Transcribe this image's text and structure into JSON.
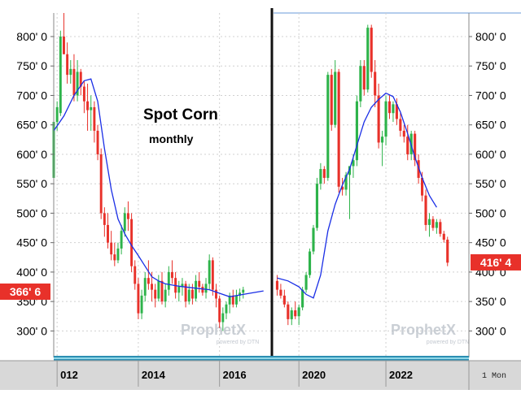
{
  "chart_data": [
    {
      "type": "candlestick",
      "title": "Spot Corn",
      "subtitle": "monthly",
      "ylim": [
        255,
        840
      ],
      "x_range": [
        "2011-12",
        "2017-04"
      ],
      "y_ticks_left": [
        "800' 0",
        "750' 0",
        "700' 0",
        "650' 0",
        "600' 0",
        "550' 0",
        "500' 0",
        "450' 0",
        "400' 0",
        "350' 0",
        "300' 0"
      ],
      "y_tick_values": [
        800,
        750,
        700,
        650,
        600,
        550,
        500,
        450,
        400,
        350,
        300
      ],
      "x_ticks": [
        {
          "label": "012",
          "value": "2012-01"
        },
        {
          "label": "2014",
          "value": "2014-01"
        },
        {
          "label": "2016",
          "value": "2016-01"
        }
      ],
      "last_price_label": "366' 6",
      "last_price_value": 366.75,
      "colors": {
        "up": "#2db34a",
        "down": "#e8312a",
        "moving_average": "#1a2ee6",
        "badge": "#e8312a"
      },
      "series": [
        {
          "kind": "ohlc",
          "values": [
            [
              "2011-12",
              560,
              668,
              540,
              655
            ],
            [
              "2012-01",
              655,
              690,
              640,
              680
            ],
            [
              "2012-02",
              670,
              810,
              665,
              800
            ],
            [
              "2012-03",
              800,
              840,
              770,
              770
            ],
            [
              "2012-04",
              770,
              790,
              720,
              735
            ],
            [
              "2012-05",
              735,
              760,
              720,
              745
            ],
            [
              "2012-06",
              745,
              770,
              690,
              700
            ],
            [
              "2012-07",
              700,
              760,
              690,
              740
            ],
            [
              "2012-08",
              740,
              745,
              700,
              715
            ],
            [
              "2012-09",
              715,
              725,
              670,
              690
            ],
            [
              "2012-10",
              690,
              720,
              640,
              675
            ],
            [
              "2012-11",
              675,
              700,
              640,
              680
            ],
            [
              "2012-12",
              680,
              690,
              620,
              640
            ],
            [
              "2013-01",
              640,
              650,
              590,
              600
            ],
            [
              "2013-02",
              600,
              610,
              490,
              500
            ],
            [
              "2013-03",
              500,
              510,
              460,
              480
            ],
            [
              "2013-04",
              480,
              500,
              440,
              450
            ],
            [
              "2013-05",
              450,
              470,
              420,
              430
            ],
            [
              "2013-06",
              430,
              450,
              410,
              420
            ],
            [
              "2013-07",
              420,
              450,
              415,
              440
            ],
            [
              "2013-08",
              440,
              480,
              430,
              470
            ],
            [
              "2013-09",
              470,
              510,
              460,
              500
            ],
            [
              "2013-10",
              500,
              520,
              470,
              490
            ],
            [
              "2013-11",
              490,
              500,
              400,
              410
            ],
            [
              "2013-12",
              410,
              420,
              370,
              380
            ],
            [
              "2014-01",
              380,
              390,
              320,
              330
            ],
            [
              "2014-02",
              330,
              370,
              320,
              360
            ],
            [
              "2014-03",
              360,
              400,
              350,
              390
            ],
            [
              "2014-04",
              390,
              420,
              370,
              380
            ],
            [
              "2014-05",
              380,
              400,
              350,
              370
            ],
            [
              "2014-06",
              370,
              380,
              340,
              355
            ],
            [
              "2014-07",
              355,
              395,
              350,
              385
            ],
            [
              "2014-08",
              385,
              400,
              345,
              350
            ],
            [
              "2014-09",
              350,
              380,
              340,
              370
            ],
            [
              "2014-10",
              370,
              410,
              360,
              400
            ],
            [
              "2014-11",
              400,
              420,
              380,
              390
            ],
            [
              "2014-12",
              390,
              400,
              355,
              365
            ],
            [
              "2015-01",
              365,
              385,
              350,
              375
            ],
            [
              "2015-02",
              375,
              390,
              360,
              380
            ],
            [
              "2015-03",
              380,
              385,
              340,
              350
            ],
            [
              "2015-04",
              350,
              380,
              345,
              370
            ],
            [
              "2015-05",
              370,
              380,
              345,
              355
            ],
            [
              "2015-06",
              355,
              395,
              350,
              385
            ],
            [
              "2015-07",
              385,
              400,
              365,
              375
            ],
            [
              "2015-08",
              375,
              380,
              360,
              365
            ],
            [
              "2015-09",
              365,
              390,
              355,
              380
            ],
            [
              "2015-10",
              380,
              430,
              370,
              420
            ],
            [
              "2015-11",
              420,
              425,
              360,
              370
            ],
            [
              "2015-12",
              370,
              380,
              340,
              355
            ],
            [
              "2016-01",
              355,
              360,
              305,
              315
            ],
            [
              "2016-02",
              315,
              340,
              300,
              330
            ],
            [
              "2016-03",
              330,
              350,
              320,
              345
            ],
            [
              "2016-04",
              345,
              365,
              330,
              360
            ],
            [
              "2016-05",
              360,
              370,
              340,
              345
            ],
            [
              "2016-06",
              345,
              370,
              340,
              360
            ],
            [
              "2016-07",
              360,
              372,
              350,
              365
            ],
            [
              "2016-08",
              365,
              375,
              355,
              370
            ]
          ]
        },
        {
          "kind": "moving_average",
          "values": [
            [
              "2011-12",
              640
            ],
            [
              "2012-03",
              665
            ],
            [
              "2012-06",
              700
            ],
            [
              "2012-09",
              725
            ],
            [
              "2012-11",
              728
            ],
            [
              "2013-01",
              690
            ],
            [
              "2013-03",
              610
            ],
            [
              "2013-05",
              540
            ],
            [
              "2013-07",
              490
            ],
            [
              "2013-09",
              465
            ],
            [
              "2013-11",
              445
            ],
            [
              "2014-01",
              428
            ],
            [
              "2014-03",
              410
            ],
            [
              "2014-05",
              392
            ],
            [
              "2014-07",
              385
            ],
            [
              "2014-09",
              380
            ],
            [
              "2014-11",
              378
            ],
            [
              "2015-01",
              376
            ],
            [
              "2015-04",
              374
            ],
            [
              "2015-07",
              372
            ],
            [
              "2015-10",
              370
            ],
            [
              "2016-01",
              364
            ],
            [
              "2016-04",
              358
            ],
            [
              "2016-08",
              362
            ],
            [
              "2017-02",
              368
            ]
          ]
        }
      ],
      "watermark": "ProphetX",
      "watermark_sub": "powered by DTN"
    },
    {
      "type": "candlestick",
      "x_range": [
        "2019-06",
        "2023-11"
      ],
      "ylim": [
        255,
        840
      ],
      "y_ticks_right": [
        "800' 0",
        "750' 0",
        "700' 0",
        "650' 0",
        "600' 0",
        "550' 0",
        "500' 0",
        "450' 0",
        "400' 0",
        "350' 0",
        "300' 0"
      ],
      "y_tick_values": [
        800,
        750,
        700,
        650,
        600,
        550,
        500,
        450,
        400,
        350,
        300
      ],
      "x_ticks": [
        {
          "label": "2020",
          "value": "2020-01"
        },
        {
          "label": "2022",
          "value": "2022-01"
        }
      ],
      "last_price_label": "416' 4",
      "last_price_value": 416.5,
      "colors": {
        "up": "#2db34a",
        "down": "#e8312a",
        "moving_average": "#1a2ee6",
        "badge": "#e8312a"
      },
      "series": [
        {
          "kind": "ohlc",
          "values": [
            [
              "2019-07",
              385,
              395,
              360,
              370
            ],
            [
              "2019-08",
              370,
              380,
              355,
              360
            ],
            [
              "2019-09",
              360,
              370,
              340,
              345
            ],
            [
              "2019-10",
              345,
              350,
              310,
              320
            ],
            [
              "2019-11",
              320,
              340,
              310,
              335
            ],
            [
              "2019-12",
              335,
              350,
              320,
              325
            ],
            [
              "2020-01",
              325,
              345,
              310,
              340
            ],
            [
              "2020-02",
              340,
              375,
              335,
              370
            ],
            [
              "2020-03",
              370,
              400,
              365,
              395
            ],
            [
              "2020-04",
              395,
              440,
              390,
              435
            ],
            [
              "2020-05",
              435,
              480,
              430,
              475
            ],
            [
              "2020-06",
              475,
              560,
              470,
              550
            ],
            [
              "2020-07",
              550,
              585,
              540,
              575
            ],
            [
              "2020-08",
              575,
              580,
              550,
              560
            ],
            [
              "2020-09",
              560,
              740,
              555,
              735
            ],
            [
              "2020-10",
              735,
              745,
              640,
              650
            ],
            [
              "2020-11",
              650,
              760,
              645,
              740
            ],
            [
              "2020-12",
              740,
              745,
              535,
              545
            ],
            [
              "2021-01",
              545,
              560,
              530,
              540
            ],
            [
              "2021-02",
              540,
              570,
              530,
              565
            ],
            [
              "2021-03",
              565,
              580,
              490,
              580
            ],
            [
              "2021-04",
              580,
              600,
              560,
              590
            ],
            [
              "2021-05",
              590,
              700,
              580,
              690
            ],
            [
              "2021-06",
              690,
              760,
              680,
              750
            ],
            [
              "2021-07",
              750,
              760,
              700,
              710
            ],
            [
              "2021-08",
              710,
              820,
              705,
              815
            ],
            [
              "2021-09",
              815,
              820,
              730,
              740
            ],
            [
              "2021-10",
              740,
              760,
              680,
              700
            ],
            [
              "2021-11",
              700,
              720,
              610,
              620
            ],
            [
              "2021-12",
              620,
              640,
              580,
              630
            ],
            [
              "2021-13",
              630,
              670,
              615,
              660
            ],
            [
              "2022-01",
              660,
              700,
              650,
              690
            ],
            [
              "2022-02",
              690,
              700,
              660,
              670
            ],
            [
              "2022-03",
              670,
              690,
              655,
              685
            ],
            [
              "2022-04",
              685,
              695,
              650,
              660
            ],
            [
              "2022-05",
              660,
              670,
              630,
              640
            ],
            [
              "2022-06",
              640,
              650,
              620,
              630
            ],
            [
              "2022-07",
              630,
              650,
              590,
              600
            ],
            [
              "2022-08",
              600,
              640,
              590,
              635
            ],
            [
              "2022-09",
              635,
              640,
              580,
              590
            ],
            [
              "2022-10",
              590,
              600,
              550,
              560
            ],
            [
              "2022-11",
              560,
              570,
              520,
              530
            ],
            [
              "2022-12",
              530,
              540,
              470,
              480
            ],
            [
              "2023-01",
              480,
              500,
              460,
              490
            ],
            [
              "2023-02",
              490,
              495,
              470,
              475
            ],
            [
              "2023-03",
              475,
              490,
              465,
              485
            ],
            [
              "2023-04",
              485,
              490,
              460,
              465
            ],
            [
              "2023-05",
              465,
              470,
              450,
              455
            ],
            [
              "2023-06",
              455,
              460,
              410,
              416
            ]
          ]
        },
        {
          "kind": "moving_average",
          "values": [
            [
              "2019-07",
              390
            ],
            [
              "2019-10",
              385
            ],
            [
              "2020-01",
              375
            ],
            [
              "2020-03",
              362
            ],
            [
              "2020-05",
              356
            ],
            [
              "2020-07",
              395
            ],
            [
              "2020-09",
              470
            ],
            [
              "2020-11",
              515
            ],
            [
              "2021-01",
              548
            ],
            [
              "2021-03",
              575
            ],
            [
              "2021-05",
              615
            ],
            [
              "2021-07",
              655
            ],
            [
              "2021-09",
              680
            ],
            [
              "2021-11",
              693
            ],
            [
              "2022-01",
              704
            ],
            [
              "2022-03",
              698
            ],
            [
              "2022-05",
              672
            ],
            [
              "2022-07",
              635
            ],
            [
              "2022-09",
              595
            ],
            [
              "2022-11",
              560
            ],
            [
              "2023-01",
              530
            ],
            [
              "2023-03",
              510
            ]
          ]
        }
      ],
      "watermark": "ProphetX",
      "watermark_sub": "powered by DTN"
    }
  ],
  "status_bar": {
    "period_label": "1 Mon"
  }
}
